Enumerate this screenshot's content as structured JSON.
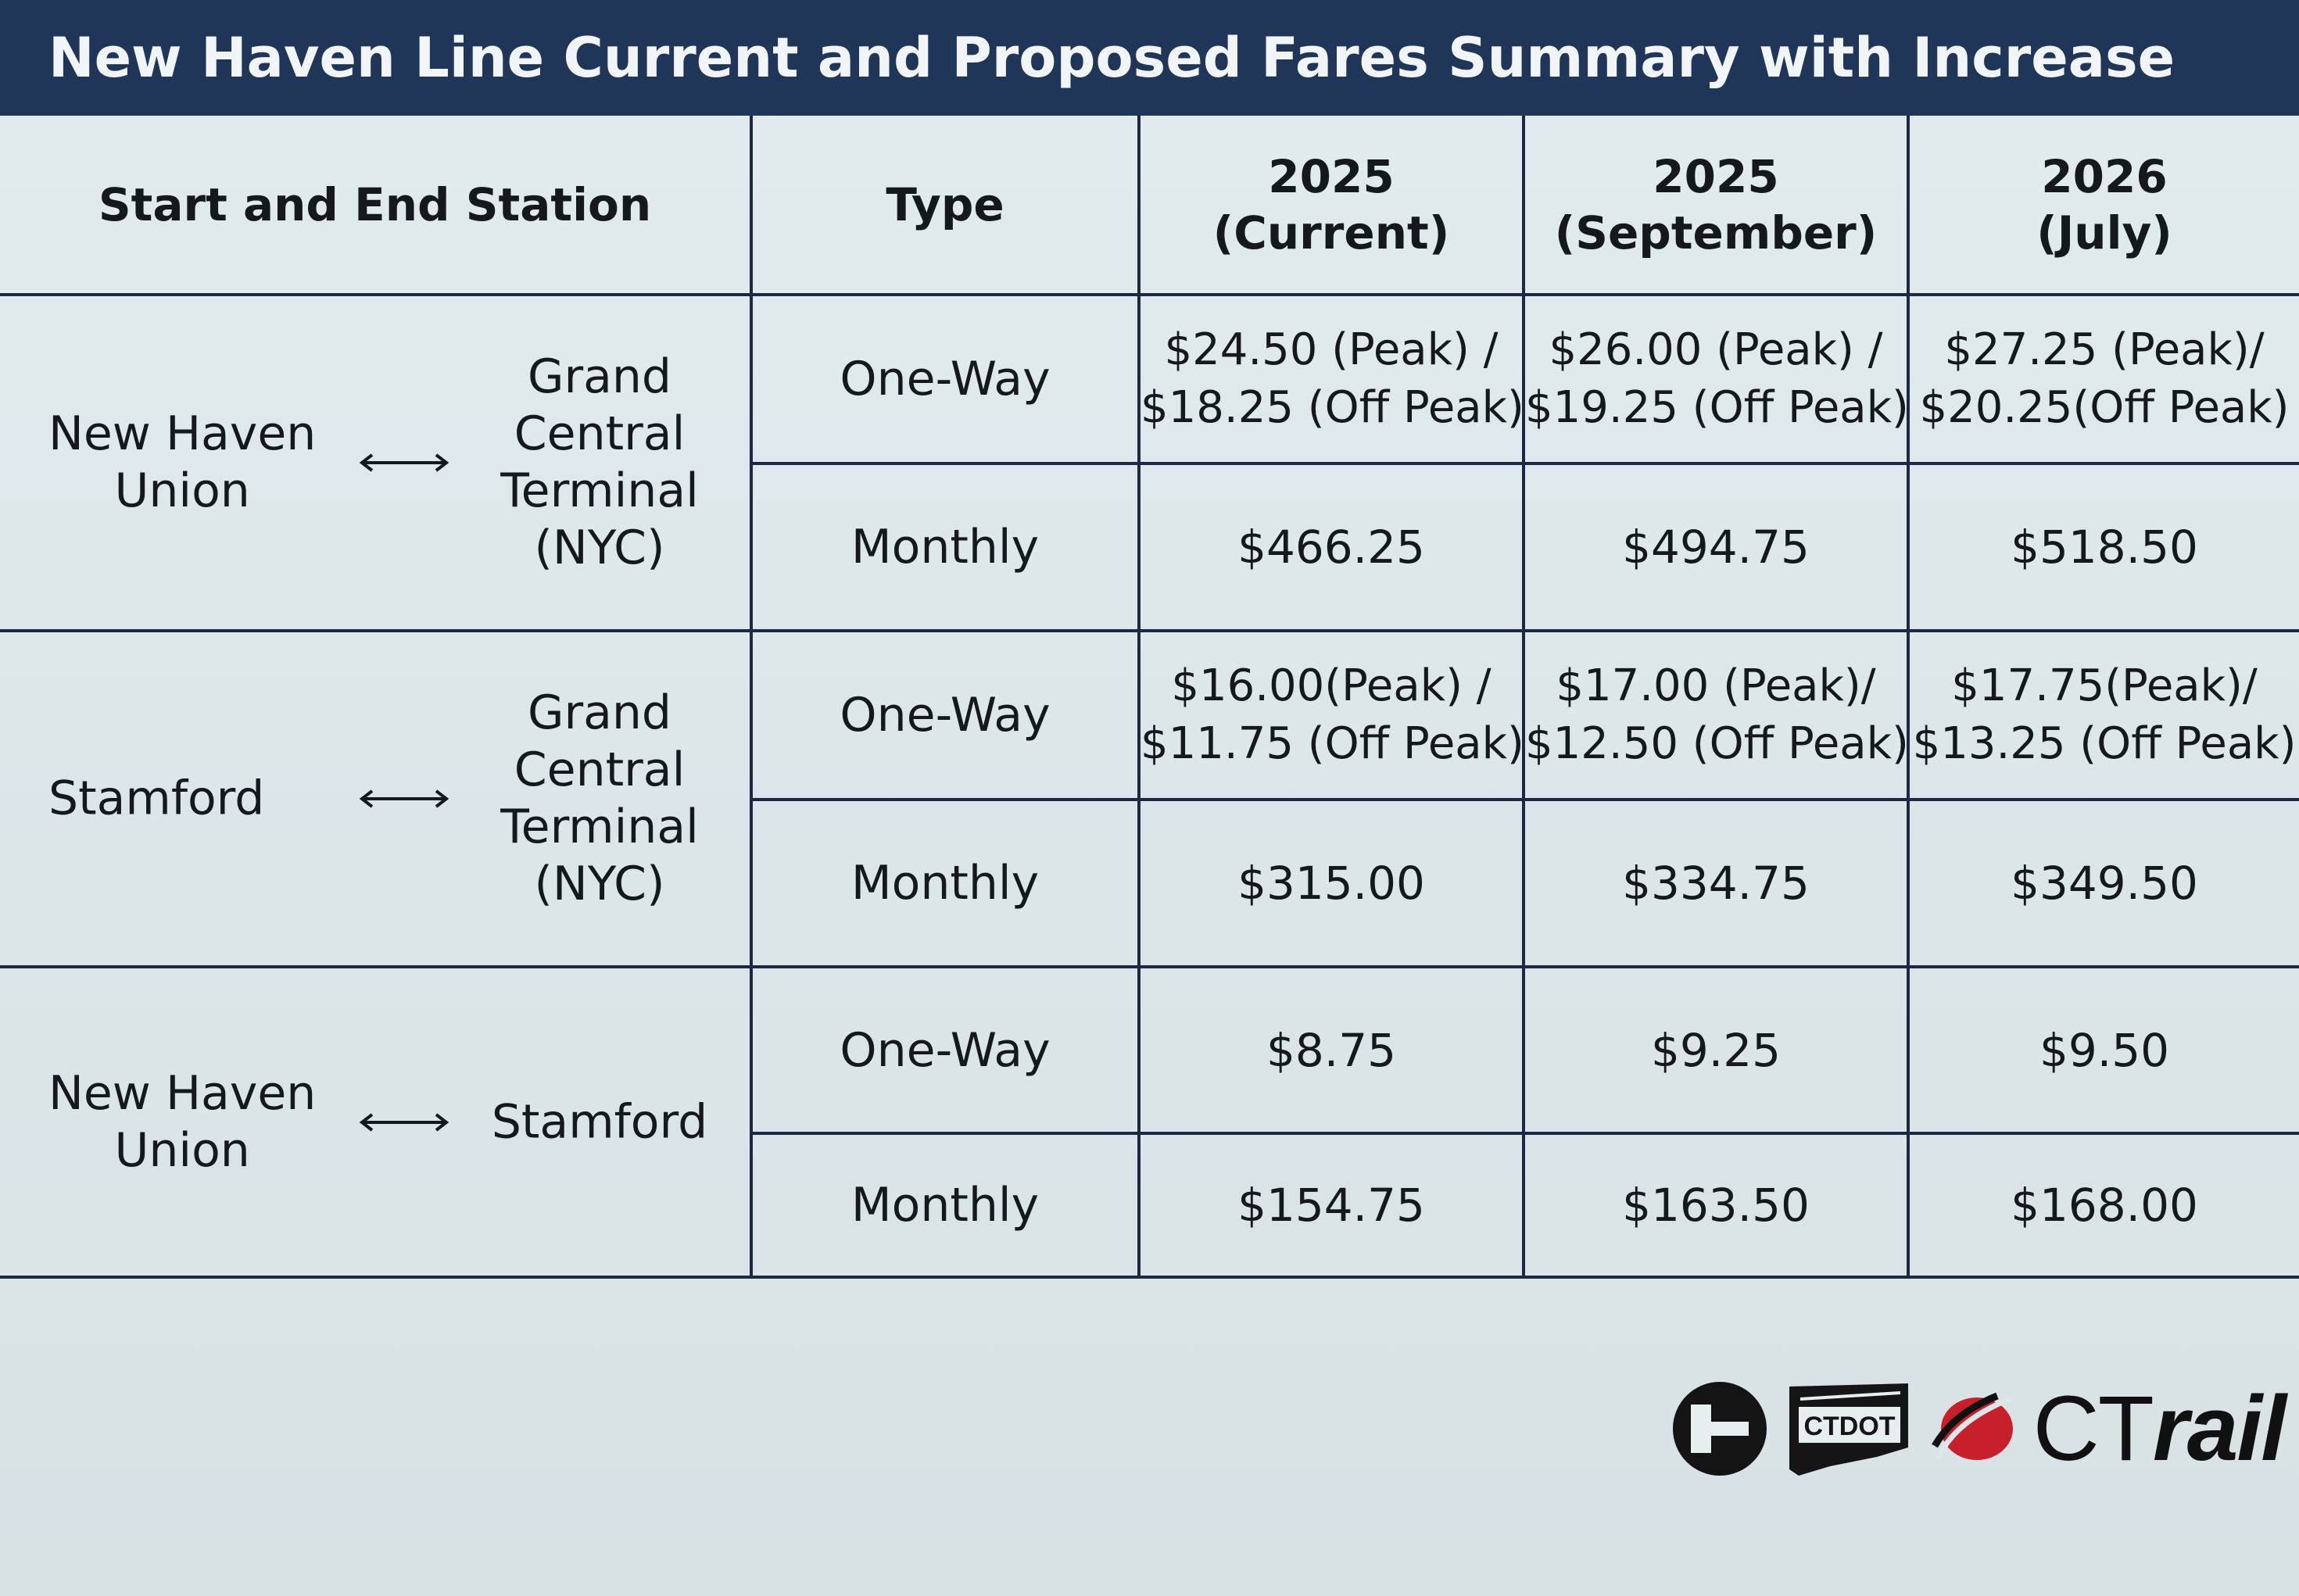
{
  "title": "New Haven Line Current and Proposed Fares Summary with Increase",
  "headers": {
    "station": "Start and End Station",
    "type": "Type",
    "col1": [
      "2025",
      "(Current)"
    ],
    "col2": [
      "2025",
      "(September)"
    ],
    "col3": [
      "2026",
      "(July)"
    ]
  },
  "routes": [
    {
      "start": [
        "New Haven",
        "Union"
      ],
      "end": [
        "Grand",
        "Central",
        "Terminal",
        "(NYC)"
      ],
      "rows": [
        {
          "type": "One-Way",
          "fares": [
            [
              "$24.50 (Peak) /",
              "$18.25 (Off Peak)"
            ],
            [
              "$26.00 (Peak) /",
              "$19.25 (Off Peak)"
            ],
            [
              "$27.25 (Peak)/",
              "$20.25(Off Peak)"
            ]
          ]
        },
        {
          "type": "Monthly",
          "fares": [
            "$466.25",
            "$494.75",
            "$518.50"
          ]
        }
      ]
    },
    {
      "start": [
        "Stamford"
      ],
      "end": [
        "Grand",
        "Central",
        "Terminal",
        "(NYC)"
      ],
      "rows": [
        {
          "type": "One-Way",
          "fares": [
            [
              "$16.00(Peak) /",
              "$11.75 (Off Peak)"
            ],
            [
              "$17.00 (Peak)/",
              "$12.50 (Off Peak)"
            ],
            [
              "$17.75(Peak)/",
              "$13.25 (Off Peak)"
            ]
          ]
        },
        {
          "type": "Monthly",
          "fares": [
            "$315.00",
            "$334.75",
            "$349.50"
          ]
        }
      ]
    },
    {
      "start": [
        "New Haven",
        "Union"
      ],
      "end": [
        "Stamford"
      ],
      "rows": [
        {
          "type": "One-Way",
          "fares": [
            "$8.75",
            "$9.25",
            "$9.50"
          ]
        },
        {
          "type": "Monthly",
          "fares": [
            "$154.75",
            "$163.50",
            "$168.00"
          ]
        }
      ]
    }
  ],
  "logos": {
    "ctdot_label": "CTDOT",
    "ctrail_ct": "CT",
    "ctrail_rail": "rail"
  },
  "colors": {
    "header_bar": "#1f3658",
    "border": "#1b2a44",
    "paper": "#dde7ea",
    "ctrail_red": "#c8202a"
  },
  "icons": [
    "bidirectional-arrow-icon",
    "ct-transit-logo",
    "ctdot-logo",
    "ctrail-logo"
  ]
}
